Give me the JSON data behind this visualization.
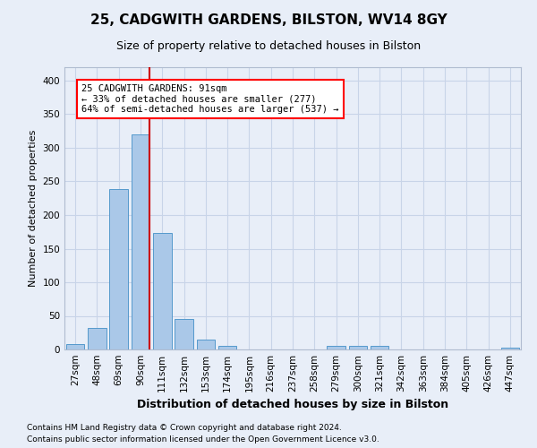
{
  "title1": "25, CADGWITH GARDENS, BILSTON, WV14 8GY",
  "title2": "Size of property relative to detached houses in Bilston",
  "xlabel": "Distribution of detached houses by size in Bilston",
  "ylabel": "Number of detached properties",
  "footnote1": "Contains HM Land Registry data © Crown copyright and database right 2024.",
  "footnote2": "Contains public sector information licensed under the Open Government Licence v3.0.",
  "annotation_line1": "25 CADGWITH GARDENS: 91sqm",
  "annotation_line2": "← 33% of detached houses are smaller (277)",
  "annotation_line3": "64% of semi-detached houses are larger (537) →",
  "bar_color": "#aac8e8",
  "bar_edge_color": "#5599cc",
  "marker_color": "#cc0000",
  "categories": [
    "27sqm",
    "48sqm",
    "69sqm",
    "90sqm",
    "111sqm",
    "132sqm",
    "153sqm",
    "174sqm",
    "195sqm",
    "216sqm",
    "237sqm",
    "258sqm",
    "279sqm",
    "300sqm",
    "321sqm",
    "342sqm",
    "363sqm",
    "384sqm",
    "405sqm",
    "426sqm",
    "447sqm"
  ],
  "values": [
    8,
    32,
    238,
    320,
    174,
    46,
    15,
    5,
    0,
    0,
    0,
    0,
    5,
    5,
    5,
    0,
    0,
    0,
    0,
    0,
    3
  ],
  "ylim": [
    0,
    420
  ],
  "yticks": [
    0,
    50,
    100,
    150,
    200,
    250,
    300,
    350,
    400
  ],
  "grid_color": "#c8d4e8",
  "bg_color": "#e8eef8",
  "plot_bg_color": "#e8eef8",
  "title1_fontsize": 11,
  "title2_fontsize": 9,
  "ylabel_fontsize": 8,
  "xlabel_fontsize": 9,
  "footnote_fontsize": 6.5,
  "tick_fontsize": 7.5,
  "annot_fontsize": 7.5
}
